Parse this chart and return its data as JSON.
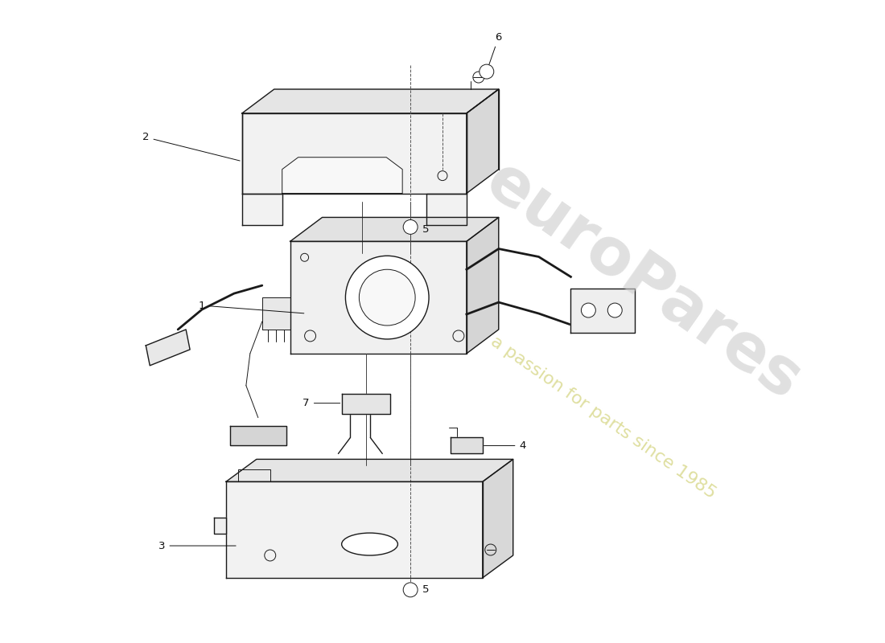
{
  "background_color": "#ffffff",
  "line_color": "#1a1a1a",
  "label_color": "#111111",
  "watermark1": "euroPares",
  "watermark2": "a passion for parts since 1985",
  "fig_width": 11.0,
  "fig_height": 8.0,
  "dpi": 100
}
